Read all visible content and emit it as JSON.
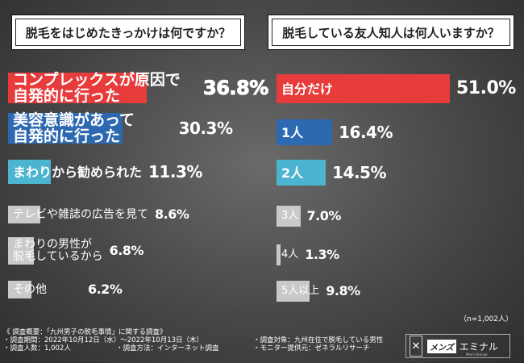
{
  "left_title": "脱毛をはじめたきっかけは何ですか？",
  "right_title": "脱毛している友人知人は何人いますか？",
  "sample_note": "（n=1,002人）",
  "chart_data": [
    {
      "type": "bar",
      "categories": [
        [
          "コンプレックスが原因で",
          "自発的に行った"
        ],
        [
          "美容意識があって",
          "自発的に行った"
        ],
        [
          "まわりから勧められた"
        ],
        [
          "テレビや雑誌の広告を見て"
        ],
        [
          "まわりの男性が",
          "脱毛しているから"
        ],
        [
          "その他"
        ]
      ],
      "values": [
        36.8,
        30.3,
        11.3,
        8.6,
        6.8,
        6.2
      ],
      "value_labels": [
        "36.8%",
        "30.3%",
        "11.3%",
        "8.6%",
        "6.8%",
        "6.2%"
      ],
      "colors": [
        "#e83c3c",
        "#2d69b0",
        "#4bb4d0",
        "#c9c9c9",
        "#c9c9c9",
        "#c9c9c9"
      ]
    },
    {
      "type": "bar",
      "categories": [
        [
          "自分だけ"
        ],
        [
          "1人"
        ],
        [
          "2人"
        ],
        [
          "3人"
        ],
        [
          "4人"
        ],
        [
          "5人以上"
        ]
      ],
      "values": [
        51.0,
        16.4,
        14.5,
        7.0,
        1.3,
        9.8
      ],
      "value_labels": [
        "51.0%",
        "16.4%",
        "14.5%",
        "7.0%",
        "1.3%",
        "9.8%"
      ],
      "colors": [
        "#e83c3c",
        "#2d69b0",
        "#4bb4d0",
        "#c9c9c9",
        "#c9c9c9",
        "#c9c9c9"
      ]
    }
  ],
  "footer": {
    "heading": "《 調査概要：「九州男子の脱毛事情」に関する調査》",
    "period": "・調査期間：2022年10月12日（水）〜2022年10月13日（木）",
    "target": "・調査対象：九州在住で脱毛している男性",
    "count": "・調査人数：1,002人",
    "method": "・調査方法：インターネット調査",
    "provider": "・モニター提供元：ゼネラルリサーチ"
  },
  "logo": {
    "mens": "メンズ",
    "name": "エミナル",
    "sub": "Men's Eminal"
  }
}
